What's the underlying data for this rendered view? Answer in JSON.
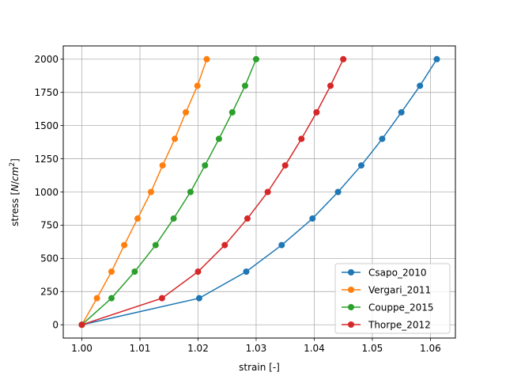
{
  "chart_data": {
    "type": "line",
    "title": "",
    "xlabel": "strain [-]",
    "ylabel": "stress [N/cm²]",
    "xlim": [
      0.9968,
      1.0643
    ],
    "ylim": [
      -100,
      2100
    ],
    "x_ticks": [
      "1.00",
      "1.01",
      "1.02",
      "1.03",
      "1.04",
      "1.05",
      "1.06"
    ],
    "y_ticks": [
      "0",
      "250",
      "500",
      "750",
      "1000",
      "1250",
      "1500",
      "1750",
      "2000"
    ],
    "grid": true,
    "legend_position": "lower-right",
    "marker": "circle",
    "series": [
      {
        "name": "Csapo_2010",
        "color": "#1f77b4",
        "x": [
          1.0,
          1.0202,
          1.0283,
          1.0344,
          1.0397,
          1.0441,
          1.0481,
          1.0517,
          1.055,
          1.0582,
          1.0611
        ],
        "y": [
          0,
          200,
          400,
          600,
          800,
          1000,
          1200,
          1400,
          1600,
          1800,
          2000
        ]
      },
      {
        "name": "Vergari_2011",
        "color": "#ff7f0e",
        "x": [
          1.0,
          1.0026,
          1.0051,
          1.0073,
          1.0096,
          1.0119,
          1.0139,
          1.016,
          1.0179,
          1.0199,
          1.0215
        ],
        "y": [
          0,
          200,
          400,
          600,
          800,
          1000,
          1200,
          1400,
          1600,
          1800,
          2000
        ]
      },
      {
        "name": "Couppe_2015",
        "color": "#2ca02c",
        "x": [
          1.0,
          1.0051,
          1.0091,
          1.0127,
          1.0158,
          1.0187,
          1.0212,
          1.0236,
          1.0259,
          1.0281,
          1.03
        ],
        "y": [
          0,
          200,
          400,
          600,
          800,
          1000,
          1200,
          1400,
          1600,
          1800,
          2000
        ]
      },
      {
        "name": "Thorpe_2012",
        "color": "#d62728",
        "x": [
          1.0,
          1.0138,
          1.02,
          1.0246,
          1.0285,
          1.032,
          1.035,
          1.0378,
          1.0404,
          1.0428,
          1.045
        ],
        "y": [
          0,
          200,
          400,
          600,
          800,
          1000,
          1200,
          1400,
          1600,
          1800,
          2000
        ]
      }
    ]
  }
}
